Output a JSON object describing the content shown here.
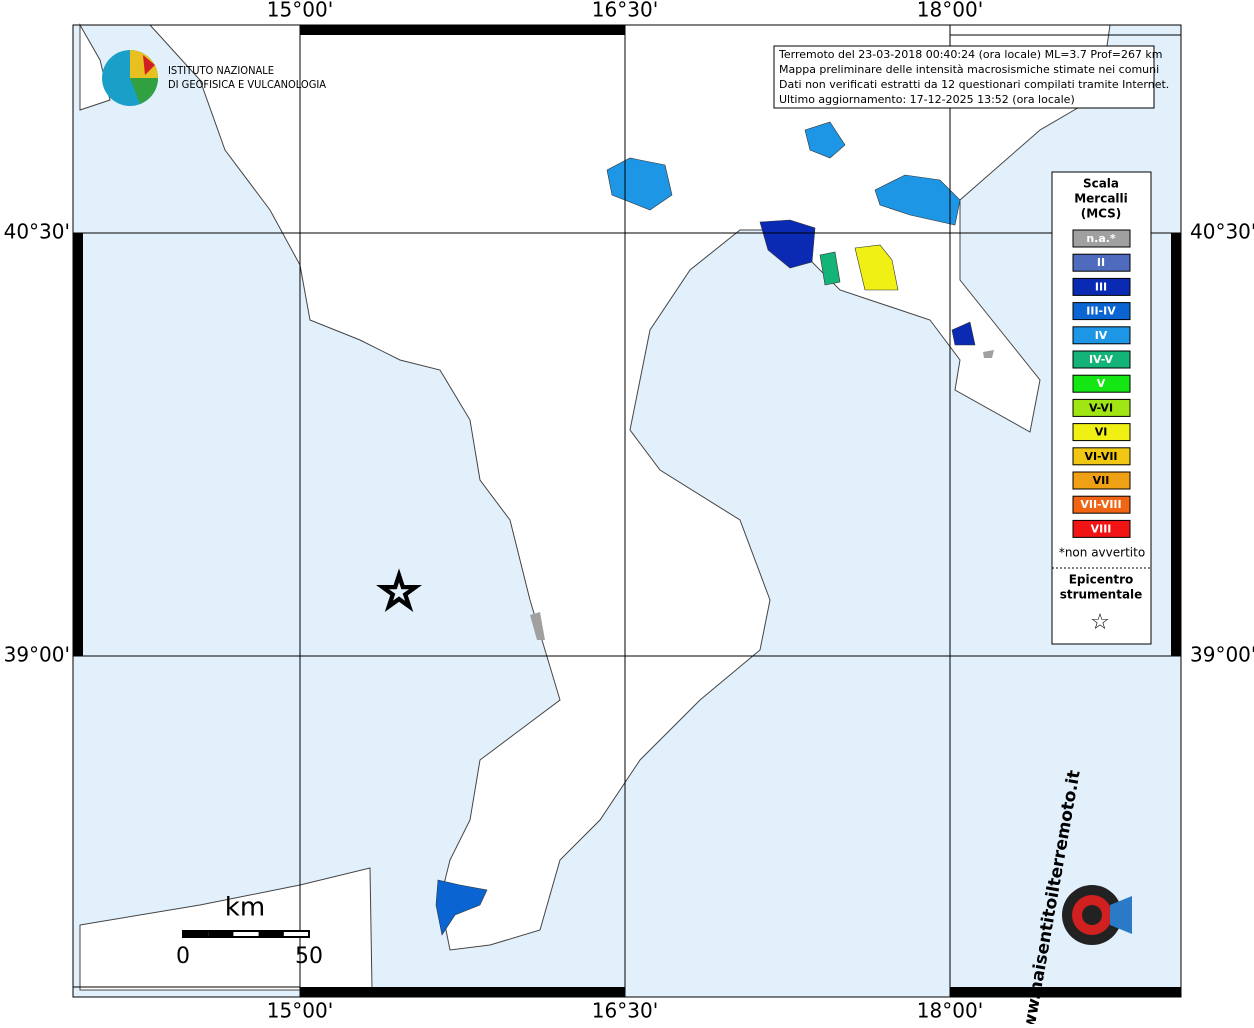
{
  "coordinate_labels": {
    "top": [
      "15°00'",
      "16°30'",
      "18°00'"
    ],
    "bottom": [
      "15°00'",
      "16°30'",
      "18°00'"
    ],
    "left": [
      "40°30'",
      "39°00'"
    ],
    "right": [
      "40°30'",
      "39°00'"
    ]
  },
  "info_box": {
    "lines": [
      "Terremoto del 23-03-2018 00:40:24 (ora locale) ML=3.7 Prof=267 km",
      "Mappa preliminare delle intensità macrosismiche stimate nei comuni",
      "Dati non verificati estratti da 12 questionari compilati tramite Internet.",
      "Ultimo aggiornamento: 17-12-2025 13:52 (ora locale)"
    ]
  },
  "legend": {
    "title": [
      "Scala",
      "Mercalli",
      "(MCS)"
    ],
    "items": [
      {
        "label": "n.a.*",
        "color": "#a0a0a0"
      },
      {
        "label": "II",
        "color": "#4f6bbd"
      },
      {
        "label": "III",
        "color": "#0a2ab4"
      },
      {
        "label": "III-IV",
        "color": "#0a64d2"
      },
      {
        "label": "IV",
        "color": "#1e96e6"
      },
      {
        "label": "IV-V",
        "color": "#14b478"
      },
      {
        "label": "V",
        "color": "#14e614"
      },
      {
        "label": "V-VI",
        "color": "#a0e614"
      },
      {
        "label": "VI",
        "color": "#f0f014"
      },
      {
        "label": "VI-VII",
        "color": "#f0c814"
      },
      {
        "label": "VII",
        "color": "#f0a014"
      },
      {
        "label": "VII-VIII",
        "color": "#f06414"
      },
      {
        "label": "VIII",
        "color": "#f01414"
      }
    ],
    "note": "*non avvertito",
    "epicenter": [
      "Epicentro",
      "strumentale"
    ]
  },
  "scale_bar": {
    "unit": "km",
    "start": 0,
    "end": 50
  },
  "logos": {
    "ingv": [
      "ISTITUTO NAZIONALE",
      "DI GEOFISICA E VULCANOLOGIA"
    ],
    "hsi": "www.haisentitoilterremoto.it"
  }
}
